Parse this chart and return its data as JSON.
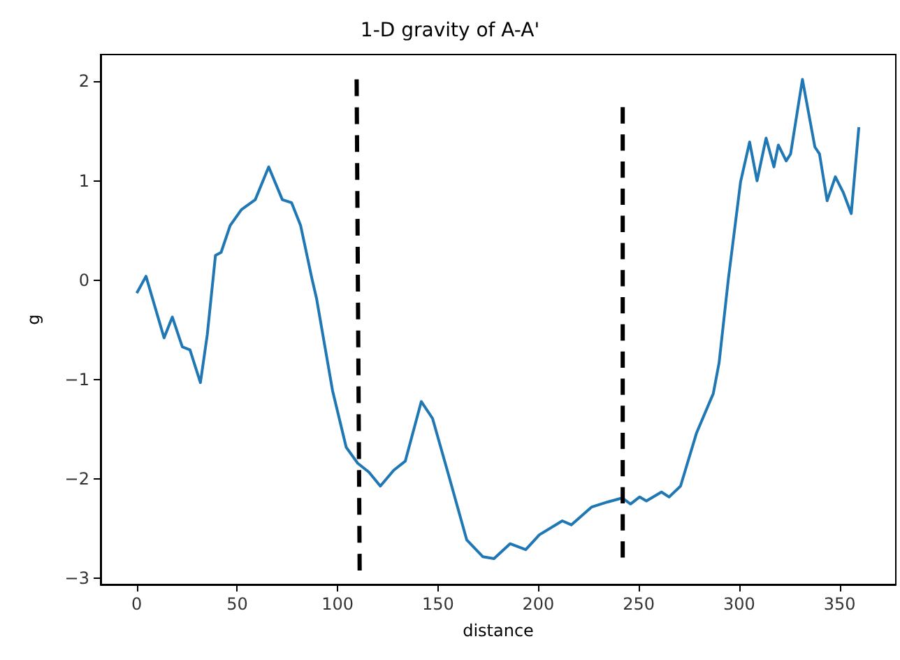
{
  "chart_data": {
    "type": "line",
    "title": "1-D gravity of A-A'",
    "xlabel": "distance",
    "ylabel": "g",
    "xlim": [
      -18,
      378
    ],
    "xticks": [
      0,
      50,
      100,
      150,
      200,
      250,
      300,
      350
    ],
    "ylim": [
      -3.06,
      2.27
    ],
    "yticks": [
      -3,
      -2,
      -1,
      0,
      1,
      2
    ],
    "grid": false,
    "marker": "none",
    "series": [
      {
        "color": "#1f77b4",
        "line_style": "solid",
        "x": [
          0,
          4.6,
          13.6,
          17.7,
          22.7,
          26.5,
          31.7,
          35.1,
          39.2,
          42,
          46.5,
          52.1,
          59,
          65.7,
          72.5,
          77.1,
          81.6,
          87.3,
          89.5,
          97.5,
          104.3,
          110,
          115.6,
          121.3,
          128,
          133.7,
          141.7,
          147.3,
          155.3,
          164.3,
          172.3,
          177.9,
          185.9,
          193.7,
          200.5,
          211.9,
          216.4,
          226.6,
          234.5,
          241.8,
          245.9,
          250.4,
          253.8,
          261.3,
          265.1,
          270.8,
          278.7,
          287.1,
          290,
          294.6,
          300.7,
          305.2,
          308.9,
          313.4,
          317.3,
          319.5,
          323.4,
          325.6,
          331.5,
          337.7,
          340,
          343.8,
          347.9,
          351.9,
          355.8,
          359.6
        ],
        "values": [
          -0.13,
          0.04,
          -0.58,
          -0.37,
          -0.67,
          -0.7,
          -1.03,
          -0.55,
          0.25,
          0.28,
          0.55,
          0.71,
          0.81,
          1.14,
          0.81,
          0.78,
          0.55,
          0.01,
          -0.18,
          -1.11,
          -1.68,
          -1.84,
          -1.93,
          -2.07,
          -1.91,
          -1.82,
          -1.22,
          -1.39,
          -1.96,
          -2.61,
          -2.78,
          -2.8,
          -2.65,
          -2.71,
          -2.56,
          -2.42,
          -2.46,
          -2.28,
          -2.23,
          -2.19,
          -2.25,
          -2.18,
          -2.22,
          -2.13,
          -2.18,
          -2.07,
          -1.54,
          -1.14,
          -0.83,
          0.01,
          0.99,
          1.39,
          1.0,
          1.43,
          1.14,
          1.36,
          1.2,
          1.27,
          2.02,
          1.34,
          1.27,
          0.8,
          1.04,
          0.88,
          0.67,
          1.54
        ]
      },
      {
        "color": "#000000",
        "line_style": "dashed",
        "x": [
          109.5,
          111
        ],
        "values": [
          2.02,
          -2.92
        ]
      },
      {
        "color": "#000000",
        "line_style": "dashed",
        "x": [
          242,
          242
        ],
        "values": [
          1.74,
          -2.79
        ]
      }
    ]
  }
}
